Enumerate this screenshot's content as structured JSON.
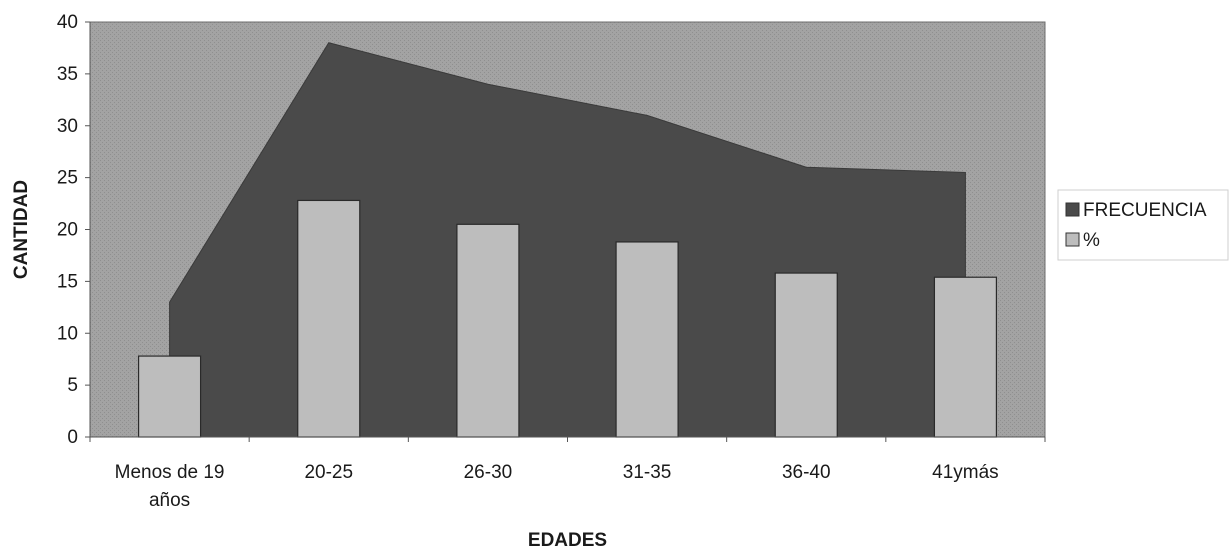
{
  "chart_data": {
    "type": "bar",
    "categories": [
      [
        "Menos de 19",
        "años"
      ],
      [
        "20-25"
      ],
      [
        "26-30"
      ],
      [
        "31-35"
      ],
      [
        "36-40"
      ],
      [
        "41ymás"
      ]
    ],
    "series": [
      {
        "name": "FRECUENCIA",
        "type": "area",
        "values": [
          13,
          38,
          34,
          31,
          26,
          25.5
        ],
        "color": "#4a4a4a"
      },
      {
        "name": "%",
        "type": "bar",
        "values": [
          7.8,
          22.8,
          20.5,
          18.8,
          15.8,
          15.4
        ],
        "color": "#bdbdbd"
      }
    ],
    "xlabel": "EDADES",
    "ylabel": "CANTIDAD",
    "ylim": [
      0,
      40
    ],
    "yticks": [
      0,
      5,
      10,
      15,
      20,
      25,
      30,
      35,
      40
    ],
    "grid": false,
    "legend_position": "right",
    "plot_background": "#9c9c9c"
  }
}
